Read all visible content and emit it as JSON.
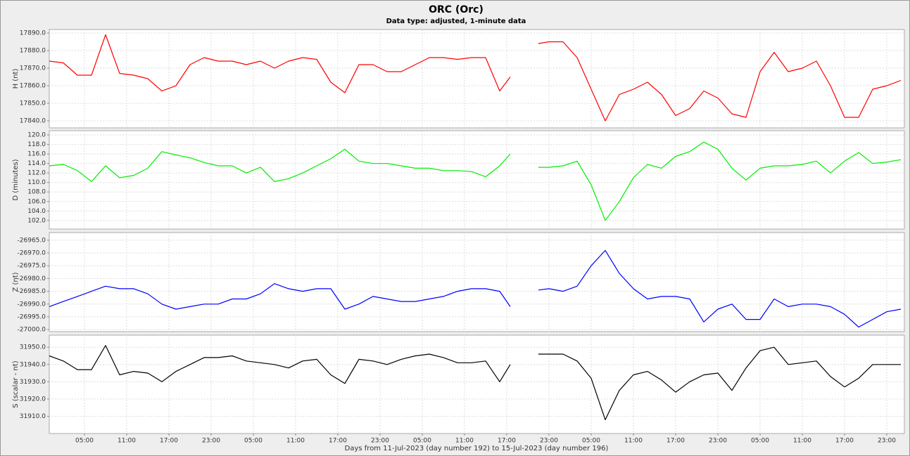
{
  "chart_data": {
    "type": "line",
    "title": "ORC (Orc)",
    "subtitle": "Data type: adjusted, 1-minute data",
    "x_label": "Days from 11-Jul-2023 (day number 192) to 15-Jul-2023 (day number 196)",
    "grid": true,
    "xlim": [
      0,
      121.5
    ],
    "xticks": [
      {
        "value": 5,
        "label": "05:00"
      },
      {
        "value": 11,
        "label": "11:00"
      },
      {
        "value": 17,
        "label": "17:00"
      },
      {
        "value": 23,
        "label": "23:00"
      },
      {
        "value": 29,
        "label": "05:00"
      },
      {
        "value": 35,
        "label": "11:00"
      },
      {
        "value": 41,
        "label": "17:00"
      },
      {
        "value": 47,
        "label": "23:00"
      },
      {
        "value": 53,
        "label": "05:00"
      },
      {
        "value": 59,
        "label": "11:00"
      },
      {
        "value": 65,
        "label": "17:00"
      },
      {
        "value": 71,
        "label": "23:00"
      },
      {
        "value": 77,
        "label": "05:00"
      },
      {
        "value": 83,
        "label": "11:00"
      },
      {
        "value": 89,
        "label": "17:00"
      },
      {
        "value": 95,
        "label": "23:00"
      },
      {
        "value": 101,
        "label": "05:00"
      },
      {
        "value": 107,
        "label": "11:00"
      },
      {
        "value": 113,
        "label": "17:00"
      },
      {
        "value": 119,
        "label": "23:00"
      }
    ],
    "x": [
      0,
      2,
      4,
      6,
      8,
      10,
      12,
      14,
      16,
      18,
      20,
      22,
      24,
      26,
      28,
      30,
      32,
      34,
      36,
      38,
      40,
      42,
      44,
      46,
      48,
      50,
      52,
      54,
      56,
      58,
      60,
      62,
      64,
      65.5,
      67,
      69.5,
      71,
      73,
      75,
      77,
      79,
      81,
      83,
      85,
      87,
      89,
      91,
      93,
      95,
      97,
      99,
      101,
      103,
      105,
      107,
      109,
      111,
      113,
      115,
      117,
      119,
      121
    ],
    "panels": [
      {
        "y_label": "H (nt)",
        "color": "#ff0000",
        "ylim": [
          17836,
          17892
        ],
        "yticks": [
          {
            "value": 17840,
            "label": "17840.0"
          },
          {
            "value": 17850,
            "label": "17850.0"
          },
          {
            "value": 17860,
            "label": "17860.0"
          },
          {
            "value": 17870,
            "label": "17870.0"
          },
          {
            "value": 17880,
            "label": "17880.0"
          },
          {
            "value": 17890,
            "label": "17890.0"
          }
        ],
        "values": [
          17874,
          17873,
          17866,
          17866,
          17889,
          17867,
          17866,
          17864,
          17857,
          17860,
          17872,
          17876,
          17874,
          17874,
          17872,
          17874,
          17870,
          17874,
          17876,
          17875,
          17862,
          17856,
          17872,
          17872,
          17868,
          17868,
          17872,
          17876,
          17876,
          17875,
          17876,
          17876,
          17857,
          17865,
          null,
          17884,
          17885,
          17885,
          17876,
          17858,
          17840,
          17855,
          17858,
          17862,
          17855,
          17843,
          17847,
          17857,
          17853,
          17844,
          17842,
          17868,
          17879,
          17868,
          17870,
          17874,
          17860,
          17842,
          17842,
          17858,
          17860,
          17863
        ]
      },
      {
        "y_label": "D (minutes)",
        "color": "#00ee00",
        "ylim": [
          100.2,
          120.9
        ],
        "yticks": [
          {
            "value": 102,
            "label": "102.0"
          },
          {
            "value": 104,
            "label": "104.0"
          },
          {
            "value": 106,
            "label": "106.0"
          },
          {
            "value": 108,
            "label": "108.0"
          },
          {
            "value": 110,
            "label": "110.0"
          },
          {
            "value": 112,
            "label": "112.0"
          },
          {
            "value": 114,
            "label": "114.0"
          },
          {
            "value": 116,
            "label": "116.0"
          },
          {
            "value": 118,
            "label": "118.0"
          },
          {
            "value": 120,
            "label": "120.0"
          }
        ],
        "values": [
          113.5,
          113.8,
          112.5,
          110.2,
          113.5,
          111,
          111.5,
          113,
          116.5,
          115.8,
          115.2,
          114.2,
          113.5,
          113.5,
          112,
          113.2,
          110.2,
          110.8,
          112,
          113.5,
          115,
          117,
          114.5,
          114,
          114,
          113.5,
          113,
          113,
          112.5,
          112.5,
          112.3,
          111.2,
          113.5,
          116,
          null,
          113.2,
          113.2,
          113.5,
          114.5,
          109.5,
          102,
          106,
          111,
          113.8,
          113,
          115.5,
          116.5,
          118.5,
          117,
          113,
          110.5,
          113,
          113.5,
          113.5,
          113.8,
          114.5,
          112,
          114.5,
          116.3,
          114,
          114.3,
          114.8
        ]
      },
      {
        "y_label": "Z (nt)",
        "color": "#0000ff",
        "ylim": [
          -27000.8,
          -26962
        ],
        "yticks": [
          {
            "value": -27000,
            "label": "-27000.0"
          },
          {
            "value": -26995,
            "label": "-26995.0"
          },
          {
            "value": -26990,
            "label": "-26990.0"
          },
          {
            "value": -26985,
            "label": "-26985.0"
          },
          {
            "value": -26980,
            "label": "-26980.0"
          },
          {
            "value": -26975,
            "label": "-26975.0"
          },
          {
            "value": -26970,
            "label": "-26970.0"
          },
          {
            "value": -26965,
            "label": "-26965.0"
          }
        ],
        "values": [
          -26991,
          -26989,
          -26987,
          -26985,
          -26983,
          -26984,
          -26984,
          -26986,
          -26990,
          -26992,
          -26991,
          -26990,
          -26990,
          -26988,
          -26988,
          -26986,
          -26982,
          -26984,
          -26985,
          -26984,
          -26984,
          -26992,
          -26990,
          -26987,
          -26988,
          -26989,
          -26989,
          -26988,
          -26987,
          -26985,
          -26984,
          -26984,
          -26985,
          -26991,
          null,
          -26984.5,
          -26984,
          -26985,
          -26983,
          -26975,
          -26969,
          -26978,
          -26984,
          -26988,
          -26987,
          -26987,
          -26988,
          -26997,
          -26992,
          -26990,
          -26996,
          -26996,
          -26988,
          -26991,
          -26990,
          -26990,
          -26991,
          -26994,
          -26999,
          -26996,
          -26993,
          -26992
        ]
      },
      {
        "y_label": "S (scalar - nt)",
        "color": "#000000",
        "ylim": [
          31900,
          31957
        ],
        "yticks": [
          {
            "value": 31910,
            "label": "31910.0"
          },
          {
            "value": 31920,
            "label": "31920.0"
          },
          {
            "value": 31930,
            "label": "31930.0"
          },
          {
            "value": 31940,
            "label": "31940.0"
          },
          {
            "value": 31950,
            "label": "31950.0"
          }
        ],
        "values": [
          31945,
          31942,
          31937,
          31937,
          31951,
          31934,
          31936,
          31935,
          31930,
          31936,
          31940,
          31944,
          31944,
          31945,
          31942,
          31941,
          31940,
          31938,
          31942,
          31943,
          31934,
          31929,
          31943,
          31942,
          31940,
          31943,
          31945,
          31946,
          31944,
          31941,
          31941,
          31942,
          31930,
          31940,
          null,
          31946,
          31946,
          31946,
          31942,
          31932,
          31908,
          31925,
          31934,
          31936,
          31931,
          31924,
          31930,
          31934,
          31935,
          31925,
          31938,
          31948,
          31950,
          31940,
          31941,
          31942,
          31933,
          31927,
          31932,
          31940,
          31940,
          31940
        ]
      }
    ]
  }
}
